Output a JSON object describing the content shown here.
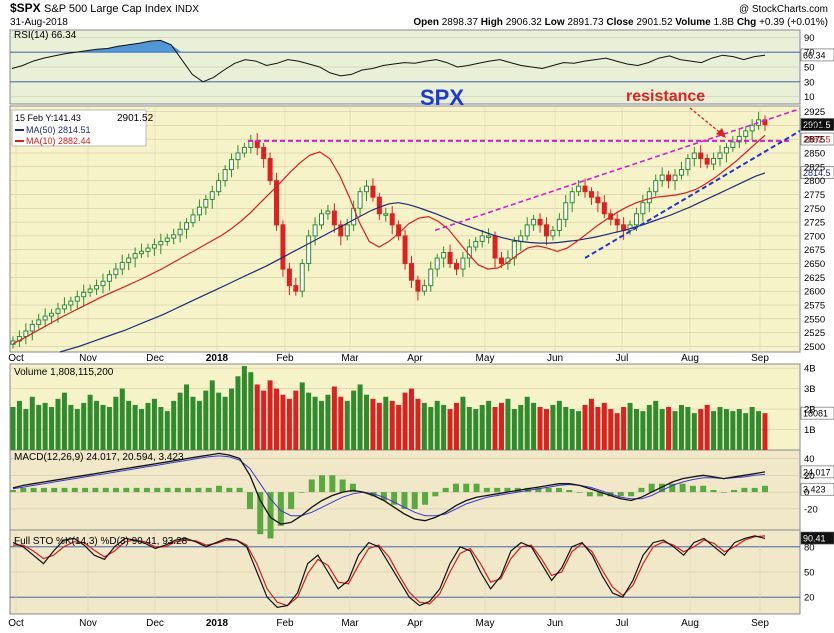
{
  "header": {
    "symbol": "$SPX",
    "name": "S&P 500 Large Cap Index",
    "exchange": "INDX",
    "date": "31-Aug-2018",
    "watermark": "@ StockCharts.com",
    "open_label": "Open",
    "open": "2898.37",
    "high_label": "High",
    "high": "2906.32",
    "low_label": "Low",
    "low": "2891.73",
    "close_label": "Close",
    "close": "2901.52",
    "volume_label": "Volume",
    "volume": "1.8B",
    "chg_label": "Chg",
    "chg": "+0.39 (+0.01%)"
  },
  "colors": {
    "up": "#2e8b2e",
    "down": "#e02020",
    "ma50": "#1f2a7a",
    "ma10": "#d02020",
    "resistance": "#cc22cc",
    "support": "#2233cc",
    "rsi_fill": "#2a7fd4",
    "price_bg": "#f7f3c8",
    "panel_bg": "#f0e8c8"
  },
  "chart_data": [
    {
      "panel": "rsi",
      "type": "line",
      "title": "RSI(14) 66.34",
      "value_tag": "66.34",
      "y_ticks": [
        "90",
        "70",
        "50",
        "30",
        "10"
      ],
      "ylim": [
        0,
        100
      ],
      "values": [
        48,
        52,
        58,
        62,
        65,
        68,
        70,
        72,
        74,
        75,
        78,
        80,
        82,
        85,
        86,
        80,
        60,
        40,
        30,
        36,
        46,
        55,
        60,
        58,
        52,
        55,
        60,
        58,
        54,
        50,
        42,
        38,
        40,
        46,
        48,
        52,
        54,
        56,
        55,
        58,
        60,
        56,
        50,
        52,
        55,
        58,
        60,
        56,
        52,
        50,
        48,
        52,
        56,
        55,
        58,
        60,
        62,
        58,
        54,
        52,
        56,
        62,
        65,
        60,
        58,
        56,
        62,
        66,
        64,
        60,
        64,
        66
      ]
    },
    {
      "panel": "price",
      "type": "candlestick",
      "title": "SPX",
      "legend": [
        "15 Feb Y:141.43",
        "MA(50) 2814.51",
        "MA(10) 2882.44"
      ],
      "last_label": "2901.52",
      "value_tags": [
        "2901.5",
        "2882.5",
        "2814.5"
      ],
      "annotation": "resistance",
      "x_ticks": [
        "Oct",
        "Nov",
        "Dec",
        "2018",
        "Feb",
        "Mar",
        "Apr",
        "May",
        "Jun",
        "Jul",
        "Aug",
        "Sep"
      ],
      "y_ticks": [
        "2925",
        "2900",
        "2875",
        "2850",
        "2825",
        "2800",
        "2775",
        "2750",
        "2725",
        "2700",
        "2675",
        "2650",
        "2625",
        "2600",
        "2575",
        "2550",
        "2525",
        "2500"
      ],
      "ylim": [
        2490,
        2935
      ],
      "closes": [
        2510,
        2518,
        2528,
        2540,
        2548,
        2555,
        2560,
        2568,
        2575,
        2582,
        2590,
        2598,
        2604,
        2610,
        2618,
        2630,
        2640,
        2652,
        2660,
        2668,
        2672,
        2678,
        2684,
        2690,
        2696,
        2702,
        2712,
        2724,
        2738,
        2752,
        2766,
        2780,
        2800,
        2820,
        2838,
        2850,
        2860,
        2872,
        2860,
        2840,
        2800,
        2720,
        2640,
        2610,
        2600,
        2650,
        2700,
        2720,
        2740,
        2745,
        2720,
        2700,
        2720,
        2750,
        2780,
        2790,
        2770,
        2740,
        2740,
        2720,
        2700,
        2650,
        2620,
        2600,
        2610,
        2640,
        2660,
        2670,
        2650,
        2640,
        2660,
        2680,
        2690,
        2700,
        2700,
        2660,
        2650,
        2660,
        2690,
        2700,
        2720,
        2730,
        2720,
        2700,
        2710,
        2730,
        2760,
        2780,
        2790,
        2780,
        2770,
        2760,
        2740,
        2730,
        2720,
        2710,
        2720,
        2740,
        2760,
        2780,
        2800,
        2810,
        2800,
        2810,
        2820,
        2840,
        2850,
        2840,
        2830,
        2840,
        2850,
        2860,
        2870,
        2880,
        2890,
        2900,
        2910,
        2901
      ],
      "ma50": [
        2490,
        2495,
        2500,
        2506,
        2512,
        2518,
        2524,
        2530,
        2537,
        2544,
        2551,
        2558,
        2566,
        2574,
        2582,
        2590,
        2598,
        2606,
        2614,
        2622,
        2630,
        2638,
        2646,
        2655,
        2664,
        2673,
        2682,
        2691,
        2700,
        2709,
        2718,
        2727,
        2736,
        2745,
        2752,
        2758,
        2760,
        2757,
        2752,
        2746,
        2740,
        2733,
        2726,
        2720,
        2714,
        2708,
        2702,
        2697,
        2693,
        2690,
        2688,
        2687,
        2687,
        2688,
        2690,
        2692,
        2695,
        2698,
        2702,
        2706,
        2710,
        2715,
        2720,
        2726,
        2732,
        2738,
        2745,
        2752,
        2760,
        2768,
        2776,
        2784,
        2792,
        2800,
        2808,
        2814
      ],
      "ma10": [
        2505,
        2514,
        2524,
        2534,
        2544,
        2554,
        2563,
        2572,
        2581,
        2590,
        2598,
        2606,
        2614,
        2622,
        2631,
        2640,
        2650,
        2660,
        2670,
        2680,
        2690,
        2700,
        2712,
        2726,
        2742,
        2760,
        2778,
        2796,
        2815,
        2832,
        2846,
        2852,
        2840,
        2810,
        2770,
        2725,
        2690,
        2680,
        2690,
        2705,
        2722,
        2732,
        2735,
        2726,
        2712,
        2690,
        2668,
        2648,
        2640,
        2642,
        2652,
        2666,
        2678,
        2682,
        2678,
        2672,
        2678,
        2690,
        2704,
        2718,
        2730,
        2742,
        2752,
        2760,
        2766,
        2770,
        2772,
        2774,
        2778,
        2784,
        2794,
        2806,
        2820,
        2834,
        2850,
        2866,
        2882
      ],
      "resistance_level": 2872,
      "rising_resistance": [
        [
          2710,
          2930
        ]
      ],
      "rising_support": [
        [
          2660,
          2890
        ]
      ]
    },
    {
      "panel": "volume",
      "type": "bar",
      "title": "Volume 1,808,115,200",
      "value_tag": "18081",
      "y_ticks": [
        "4B",
        "3B",
        "2B",
        "1B"
      ],
      "ylim": [
        0,
        4.2
      ],
      "values": [
        2.1,
        2.4,
        2.0,
        2.6,
        2.2,
        2.3,
        2.1,
        2.5,
        2.8,
        2.2,
        2.0,
        2.3,
        2.7,
        2.4,
        2.2,
        2.1,
        2.6,
        3.0,
        2.4,
        2.2,
        2.0,
        2.3,
        2.5,
        2.1,
        1.9,
        2.4,
        2.8,
        3.2,
        2.6,
        2.4,
        2.9,
        3.4,
        2.8,
        2.6,
        3.0,
        3.6,
        4.1,
        3.8,
        3.2,
        2.9,
        3.4,
        3.0,
        2.7,
        2.5,
        2.9,
        3.3,
        2.8,
        2.6,
        2.4,
        2.7,
        3.1,
        2.6,
        2.4,
        2.9,
        3.2,
        2.7,
        2.5,
        2.3,
        2.6,
        2.4,
        2.2,
        2.8,
        3.0,
        2.5,
        2.3,
        2.1,
        2.4,
        2.2,
        2.0,
        2.3,
        2.6,
        2.1,
        2.0,
        2.2,
        2.4,
        2.1,
        2.3,
        2.5,
        2.0,
        2.2,
        2.6,
        2.3,
        2.1,
        2.0,
        2.2,
        2.4,
        2.1,
        2.0,
        1.9,
        2.2,
        2.5,
        2.1,
        2.3,
        2.0,
        1.8,
        2.1,
        2.3,
        2.0,
        1.9,
        2.2,
        2.4,
        2.0,
        2.1,
        1.9,
        2.2,
        2.1,
        1.8,
        2.0,
        2.2,
        1.9,
        2.1,
        2.0,
        1.9,
        2.0,
        1.8,
        2.1,
        1.9,
        1.8
      ],
      "up_down": "mixed"
    },
    {
      "panel": "macd",
      "type": "line",
      "title": "MACD(12,26,9) 24.017, 20.594, 3.423",
      "value_tags": [
        "24.017",
        "3.423"
      ],
      "y_ticks": [
        "40",
        "20",
        "0",
        "-20"
      ],
      "ylim": [
        -45,
        50
      ],
      "macd": [
        5,
        8,
        10,
        12,
        14,
        16,
        18,
        20,
        22,
        24,
        26,
        28,
        30,
        32,
        34,
        36,
        38,
        40,
        42,
        44,
        46,
        44,
        40,
        20,
        -10,
        -30,
        -38,
        -36,
        -28,
        -18,
        -10,
        -4,
        0,
        2,
        0,
        -4,
        -10,
        -18,
        -26,
        -32,
        -34,
        -30,
        -24,
        -16,
        -10,
        -6,
        -4,
        -2,
        0,
        2,
        4,
        6,
        8,
        10,
        10,
        8,
        4,
        0,
        -4,
        -8,
        -10,
        -6,
        0,
        6,
        12,
        16,
        18,
        20,
        18,
        16,
        18,
        20,
        22,
        24
      ],
      "signal": [
        4,
        6,
        8,
        10,
        12,
        14,
        16,
        18,
        20,
        22,
        24,
        26,
        28,
        30,
        32,
        34,
        36,
        38,
        40,
        42,
        43,
        42,
        38,
        28,
        10,
        -8,
        -22,
        -28,
        -28,
        -24,
        -18,
        -12,
        -6,
        -2,
        0,
        -2,
        -6,
        -12,
        -18,
        -24,
        -28,
        -28,
        -26,
        -20,
        -14,
        -10,
        -6,
        -4,
        -2,
        0,
        2,
        4,
        6,
        8,
        9,
        8,
        6,
        2,
        -2,
        -6,
        -8,
        -8,
        -4,
        2,
        8,
        12,
        15,
        17,
        17,
        16,
        17,
        18,
        20,
        21
      ]
    },
    {
      "panel": "stochastic",
      "type": "line",
      "title": "Full STO %K(14,3) %D(3) 90.41, 93.28",
      "value_tags": [
        "90.41",
        "93.28"
      ],
      "y_ticks": [
        "80",
        "50",
        "20"
      ],
      "ylim": [
        0,
        100
      ],
      "k": [
        85,
        80,
        70,
        60,
        75,
        88,
        90,
        82,
        70,
        65,
        80,
        90,
        88,
        84,
        78,
        82,
        88,
        90,
        86,
        80,
        85,
        90,
        88,
        80,
        50,
        20,
        8,
        10,
        25,
        60,
        70,
        50,
        30,
        40,
        70,
        85,
        80,
        60,
        40,
        20,
        10,
        15,
        30,
        60,
        80,
        75,
        50,
        30,
        45,
        75,
        85,
        80,
        60,
        40,
        55,
        80,
        85,
        70,
        45,
        25,
        20,
        40,
        70,
        85,
        88,
        80,
        70,
        85,
        90,
        80,
        70,
        85,
        90,
        93,
        90
      ],
      "d": [
        82,
        82,
        75,
        66,
        70,
        80,
        86,
        85,
        76,
        68,
        75,
        86,
        88,
        86,
        80,
        80,
        86,
        88,
        87,
        82,
        84,
        88,
        88,
        82,
        60,
        30,
        14,
        10,
        20,
        48,
        65,
        58,
        38,
        36,
        58,
        78,
        82,
        68,
        46,
        26,
        14,
        12,
        24,
        50,
        72,
        78,
        60,
        38,
        42,
        66,
        80,
        82,
        66,
        46,
        50,
        74,
        84,
        74,
        52,
        32,
        22,
        34,
        60,
        80,
        86,
        82,
        74,
        80,
        88,
        84,
        74,
        80,
        88,
        92,
        93
      ]
    }
  ]
}
